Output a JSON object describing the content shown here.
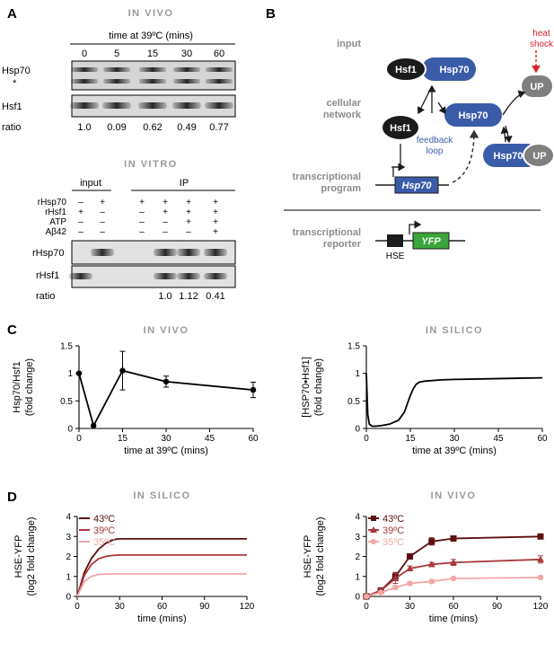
{
  "panels": {
    "A": "A",
    "B": "B",
    "C": "C",
    "D": "D"
  },
  "panelA": {
    "invivo_title": "IN VIVO",
    "time_header": "time at 39ºC (mins)",
    "time_points": [
      "0",
      "5",
      "15",
      "30",
      "60"
    ],
    "row_hsp70": "Hsp70",
    "row_star": "*",
    "row_hsf1": "Hsf1",
    "ratio_label": "ratio",
    "ratios_invivo": [
      "1.0",
      "0.09",
      "0.62",
      "0.49",
      "0.77"
    ],
    "invitro_title": "IN VITRO",
    "input_label": "input",
    "ip_label": "IP",
    "cond_labels": [
      "rHsp70",
      "rHsf1",
      "ATP",
      "Aβ42"
    ],
    "cond_matrix": [
      [
        "–",
        "+",
        "+",
        "+",
        "+",
        "+"
      ],
      [
        "+",
        "–",
        "–",
        "+",
        "+",
        "+"
      ],
      [
        "–",
        "–",
        "–",
        "–",
        "+",
        "+"
      ],
      [
        "–",
        "–",
        "–",
        "–",
        "–",
        "+"
      ]
    ],
    "blot_rhsp70": "rHsp70",
    "blot_rhsf1": "rHsf1",
    "ratios_invitro": [
      "1.0",
      "1.12",
      "0.41"
    ]
  },
  "panelB": {
    "row_input": "input",
    "row_cellular": [
      "cellular",
      "network"
    ],
    "row_transcriptional": [
      "transcriptional",
      "program"
    ],
    "row_reporter": [
      "transcriptional",
      "reporter"
    ],
    "hsf1": "Hsf1",
    "hsp70": "Hsp70",
    "up": "UP",
    "heat_shock": [
      "heat",
      "shock"
    ],
    "feedback": [
      "feedback",
      "loop"
    ],
    "gene_hsp70": "Hsp70",
    "hse": "HSE",
    "yfp": "YFP",
    "colors": {
      "blue": "#3a5ca8",
      "black": "#1b1b1b",
      "grey": "#7f7f7f",
      "green": "#3aa53a",
      "red": "#d9232a"
    }
  },
  "chart_data": [
    {
      "type": "line",
      "panel": "C",
      "title": "IN VIVO",
      "xlabel": "time at 39ºC (mins)",
      "ylabel": [
        "Hsp70/Hsf1",
        "(fold change)"
      ],
      "xlim": [
        0,
        60
      ],
      "ylim": [
        0,
        1.5
      ],
      "xticks": [
        0,
        15,
        30,
        45,
        60
      ],
      "yticks": [
        0,
        0.5,
        1,
        1.5
      ],
      "ytick_labels": [
        "0",
        "0.5",
        "1",
        "1.5"
      ],
      "series": [
        {
          "x": [
            0,
            5,
            15,
            30,
            60
          ],
          "y": [
            1.0,
            0.05,
            1.05,
            0.85,
            0.7
          ],
          "err": [
            0,
            0,
            0.35,
            0.1,
            0.14
          ]
        }
      ]
    },
    {
      "type": "line",
      "panel": "C",
      "title": "IN SILICO",
      "xlabel": "time at 39ºC (mins)",
      "ylabel": [
        "[HSP70•Hsf1]",
        "(fold change)"
      ],
      "xlim": [
        0,
        60
      ],
      "ylim": [
        0,
        1.5
      ],
      "xticks": [
        0,
        15,
        30,
        45,
        60
      ],
      "yticks": [
        0,
        0.5,
        1,
        1.5
      ],
      "ytick_labels": [
        "0",
        "0.5",
        "1",
        "1.5"
      ],
      "series": [
        {
          "x": [
            0,
            0.5,
            1,
            2,
            3,
            5,
            8,
            11,
            13,
            14,
            15,
            16,
            17,
            18,
            20,
            25,
            30,
            40,
            50,
            60
          ],
          "y": [
            1.0,
            0.25,
            0.08,
            0.04,
            0.04,
            0.05,
            0.08,
            0.15,
            0.3,
            0.45,
            0.6,
            0.72,
            0.8,
            0.84,
            0.86,
            0.88,
            0.89,
            0.9,
            0.91,
            0.92
          ]
        }
      ]
    },
    {
      "type": "line",
      "panel": "D",
      "title": "IN SILICO",
      "xlabel": "time (mins)",
      "ylabel": [
        "HSE-YFP",
        "(log2 fold change)"
      ],
      "xlim": [
        0,
        120
      ],
      "ylim": [
        0,
        4
      ],
      "xticks": [
        0,
        30,
        60,
        90,
        120
      ],
      "yticks": [
        0,
        1,
        2,
        3,
        4
      ],
      "series": [
        {
          "name": "43ºC",
          "color": "#5c0f0f",
          "x": [
            0,
            5,
            10,
            15,
            20,
            25,
            28,
            32,
            40,
            60,
            90,
            120
          ],
          "y": [
            0,
            1.2,
            1.9,
            2.35,
            2.65,
            2.82,
            2.87,
            2.88,
            2.88,
            2.88,
            2.88,
            2.88
          ]
        },
        {
          "name": "39ºC",
          "color": "#a8383c",
          "x": [
            0,
            5,
            10,
            15,
            20,
            25,
            30,
            40,
            60,
            90,
            120
          ],
          "y": [
            0,
            1.05,
            1.6,
            1.88,
            2.0,
            2.05,
            2.07,
            2.07,
            2.07,
            2.07,
            2.07
          ]
        },
        {
          "name": "35ºC",
          "color": "#f2a7a7",
          "x": [
            0,
            5,
            10,
            15,
            20,
            25,
            30,
            40,
            60,
            90,
            120
          ],
          "y": [
            0,
            0.75,
            1.0,
            1.1,
            1.12,
            1.13,
            1.13,
            1.13,
            1.13,
            1.13,
            1.13
          ]
        }
      ]
    },
    {
      "type": "line",
      "panel": "D",
      "title": "IN VIVO",
      "xlabel": "time (mins)",
      "ylabel": [
        "HSE-YFP",
        "(log2 fold change)"
      ],
      "xlim": [
        0,
        120
      ],
      "ylim": [
        0,
        4
      ],
      "xticks": [
        0,
        30,
        60,
        90,
        120
      ],
      "yticks": [
        0,
        1,
        2,
        3,
        4
      ],
      "series": [
        {
          "name": "43ºC",
          "color": "#5c0f0f",
          "marker": "square",
          "x": [
            0,
            10,
            20,
            30,
            45,
            60,
            120
          ],
          "y": [
            0,
            0.3,
            1.0,
            2.0,
            2.75,
            2.9,
            3.0
          ],
          "err": [
            0,
            0.1,
            0.2,
            0.12,
            0.18,
            0.06,
            0.05
          ]
        },
        {
          "name": "39ºC",
          "color": "#a8383c",
          "marker": "triangle",
          "x": [
            0,
            10,
            20,
            30,
            45,
            60,
            120
          ],
          "y": [
            0,
            0.3,
            0.9,
            1.4,
            1.6,
            1.7,
            1.85
          ],
          "err": [
            0,
            0.1,
            0.25,
            0.12,
            0.1,
            0.15,
            0.18
          ]
        },
        {
          "name": "35ºC",
          "color": "#f2a7a7",
          "marker": "circle",
          "x": [
            0,
            10,
            20,
            30,
            45,
            60,
            120
          ],
          "y": [
            0,
            0.2,
            0.45,
            0.65,
            0.75,
            0.9,
            0.95
          ],
          "err": [
            0,
            0.05,
            0.1,
            0.08,
            0.1,
            0.06,
            0.05
          ]
        }
      ]
    }
  ]
}
